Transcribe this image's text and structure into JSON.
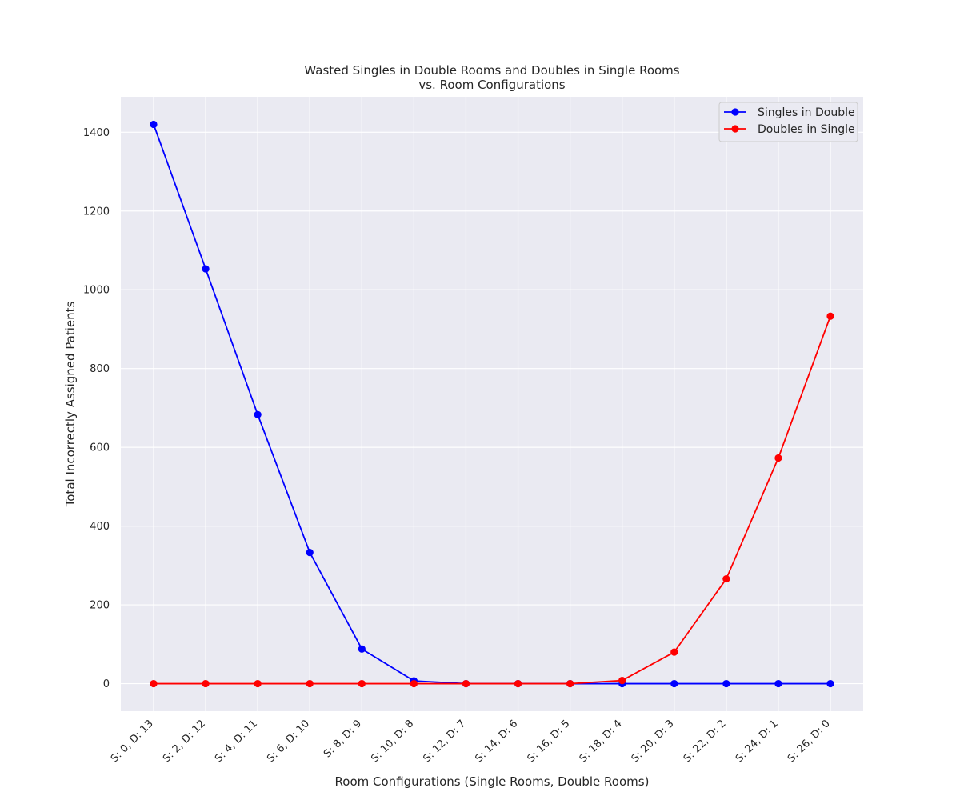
{
  "chart_data": {
    "type": "line",
    "title_line1": "Wasted Singles in Double Rooms and Doubles in Single Rooms",
    "title_line2": "vs. Room Configurations",
    "xlabel": "Room Configurations (Single Rooms, Double Rooms)",
    "ylabel": "Total Incorrectly Assigned Patients",
    "categories": [
      "S: 0, D: 13",
      "S: 2, D: 12",
      "S: 4, D: 11",
      "S: 6, D: 10",
      "S: 8, D: 9",
      "S: 10, D: 8",
      "S: 12, D: 7",
      "S: 14, D: 6",
      "S: 16, D: 5",
      "S: 18, D: 4",
      "S: 20, D: 3",
      "S: 22, D: 2",
      "S: 24, D: 1",
      "S: 26, D: 0"
    ],
    "yticks": [
      0,
      200,
      400,
      600,
      800,
      1000,
      1200,
      1400
    ],
    "ylim": [
      -70,
      1490
    ],
    "grid": true,
    "legend_position": "top-right",
    "series": [
      {
        "name": "Singles in Double",
        "color": "#0000ff",
        "values": [
          1420,
          1053,
          683,
          333,
          88,
          7,
          0,
          0,
          0,
          0,
          0,
          0,
          0,
          0
        ]
      },
      {
        "name": "Doubles in Single",
        "color": "#ff0000",
        "values": [
          0,
          0,
          0,
          0,
          0,
          0,
          0,
          0,
          0,
          8,
          80,
          266,
          573,
          933
        ]
      }
    ],
    "background_color": "#eaeaf2",
    "grid_color": "#ffffff"
  }
}
